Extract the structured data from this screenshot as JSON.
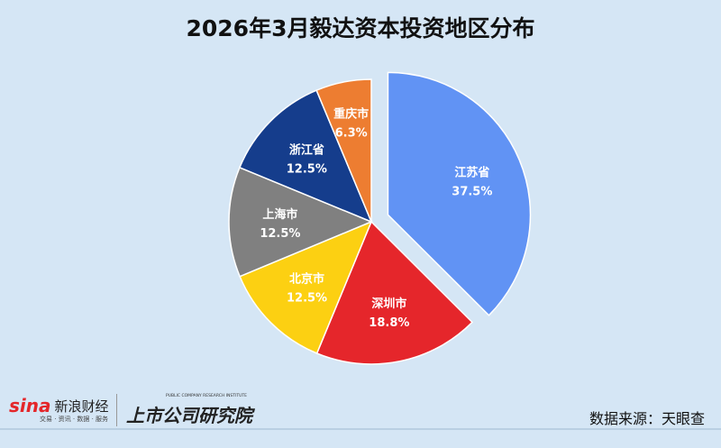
{
  "title": "2026年3月毅达资本投资地区分布",
  "chart_data": {
    "type": "pie",
    "title": "2026年3月毅达资本投资地区分布",
    "start": "12 o'clock, clockwise",
    "exploded": "江苏省",
    "slices": [
      {
        "label": "江苏省",
        "value": 37.5,
        "display": "37.5%",
        "color": "#6193f4"
      },
      {
        "label": "深圳市",
        "value": 18.8,
        "display": "18.8%",
        "color": "#e5262b"
      },
      {
        "label": "北京市",
        "value": 12.5,
        "display": "12.5%",
        "color": "#fcd012"
      },
      {
        "label": "上海市",
        "value": 12.5,
        "display": "12.5%",
        "color": "#808080"
      },
      {
        "label": "浙江省",
        "value": 12.5,
        "display": "12.5%",
        "color": "#153d8c"
      },
      {
        "label": "重庆市",
        "value": 6.3,
        "display": "6.3%",
        "color": "#ed7d31"
      }
    ]
  },
  "footer": {
    "sina_logo": "sina",
    "sina_name": "新浪财经",
    "sina_tagline": "交易 · 资讯 · 数据 · 服务",
    "institute_name": "上市公司研究院",
    "institute_en": "PUBLIC COMPANY RESEARCH INSTITUTE",
    "source": "数据来源：天眼查"
  }
}
